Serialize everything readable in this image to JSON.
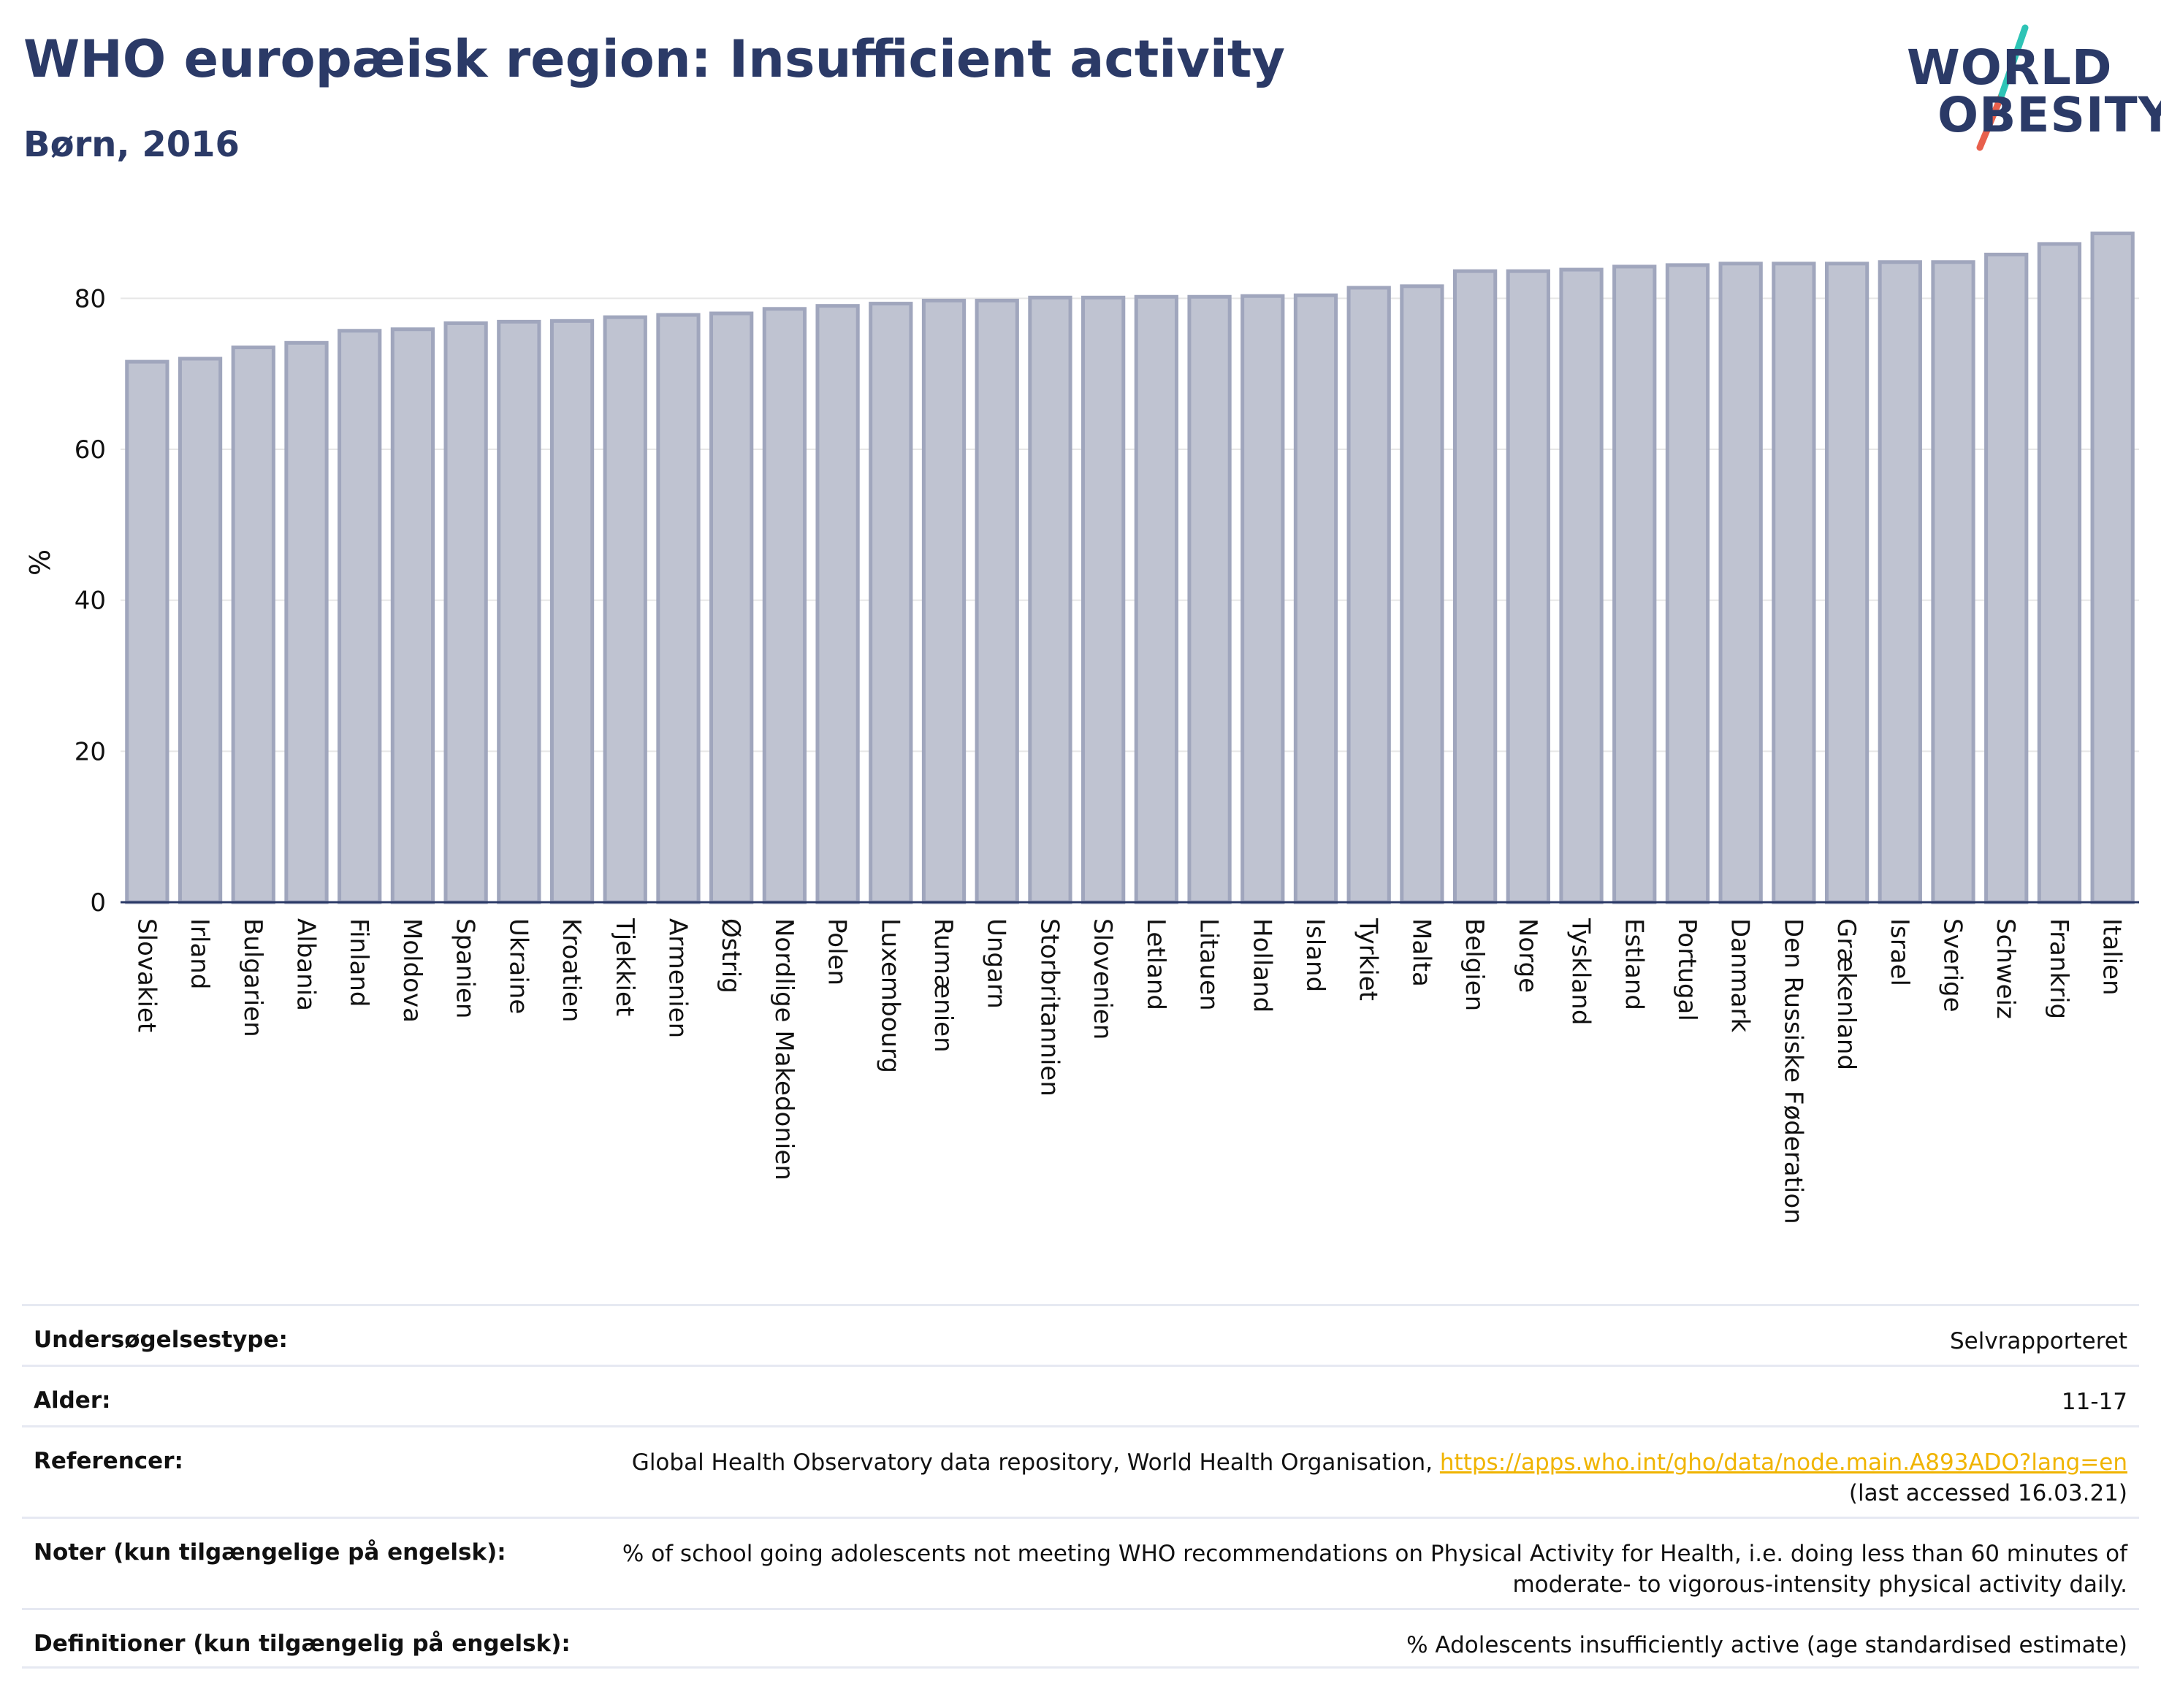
{
  "header": {
    "title": "WHO europæisk region: Insufficient activity",
    "subtitle": "Børn, 2016"
  },
  "logo": {
    "line1": "WORLD",
    "line2": "OBESITY",
    "colors": {
      "text": "#2b3a67",
      "slash_top": "#2ec4b6",
      "slash_bottom": "#e8604c"
    }
  },
  "colors": {
    "bar_fill": "#bfc3d1",
    "bar_stroke": "#a0a6bd",
    "grid": "#e6e6e6",
    "axis": "#2b3a67",
    "title": "#2b3a67",
    "link": "#f0b400"
  },
  "chart_data": {
    "type": "bar",
    "ylabel": "%",
    "ylim": [
      0,
      90
    ],
    "yticks": [
      0,
      20,
      40,
      60,
      80
    ],
    "grid": true,
    "categories": [
      "Slovakiet",
      "Irland",
      "Bulgarien",
      "Albania",
      "Finland",
      "Moldova",
      "Spanien",
      "Ukraine",
      "Kroatien",
      "Tjekkiet",
      "Armenien",
      "Østrig",
      "Nordlige Makedonien",
      "Polen",
      "Luxembourg",
      "Rumænien",
      "Ungarn",
      "Storbritannien",
      "Slovenien",
      "Letland",
      "Litauen",
      "Holland",
      "Island",
      "Tyrkiet",
      "Malta",
      "Belgien",
      "Norge",
      "Tyskland",
      "Estland",
      "Portugal",
      "Danmark",
      "Den Russiske Føderation",
      "Grækenland",
      "Israel",
      "Sverige",
      "Schweiz",
      "Frankrig",
      "Italien"
    ],
    "values": [
      71.6,
      72.0,
      73.5,
      74.1,
      75.7,
      75.9,
      76.7,
      76.9,
      77.0,
      77.5,
      77.8,
      78.0,
      78.6,
      79.0,
      79.3,
      79.7,
      79.7,
      80.1,
      80.1,
      80.2,
      80.2,
      80.3,
      80.4,
      81.4,
      81.6,
      83.6,
      83.6,
      83.8,
      84.2,
      84.4,
      84.6,
      84.6,
      84.6,
      84.8,
      84.8,
      85.8,
      87.2,
      88.6
    ]
  },
  "meta": {
    "rows": [
      {
        "label": "Undersøgelsestype:",
        "value": "Selvrapporteret"
      },
      {
        "label": "Alder:",
        "value": "11-17"
      },
      {
        "label": "Referencer:",
        "value": "Global Health Observatory data repository, World Health Organisation,",
        "link": "https://apps.who.int/gho/data/node.main.A893ADO?lang=en",
        "value2": "(last accessed 16.03.21)"
      },
      {
        "label": "Noter (kun tilgængelige på engelsk):",
        "value": "% of school going adolescents not meeting WHO recommendations on Physical Activity for Health, i.e. doing less than 60 minutes of moderate- to vigorous-intensity physical activity daily."
      },
      {
        "label": "Definitioner (kun tilgængelig på engelsk):",
        "value": "% Adolescents insufficiently active (age standardised estimate)"
      }
    ]
  }
}
